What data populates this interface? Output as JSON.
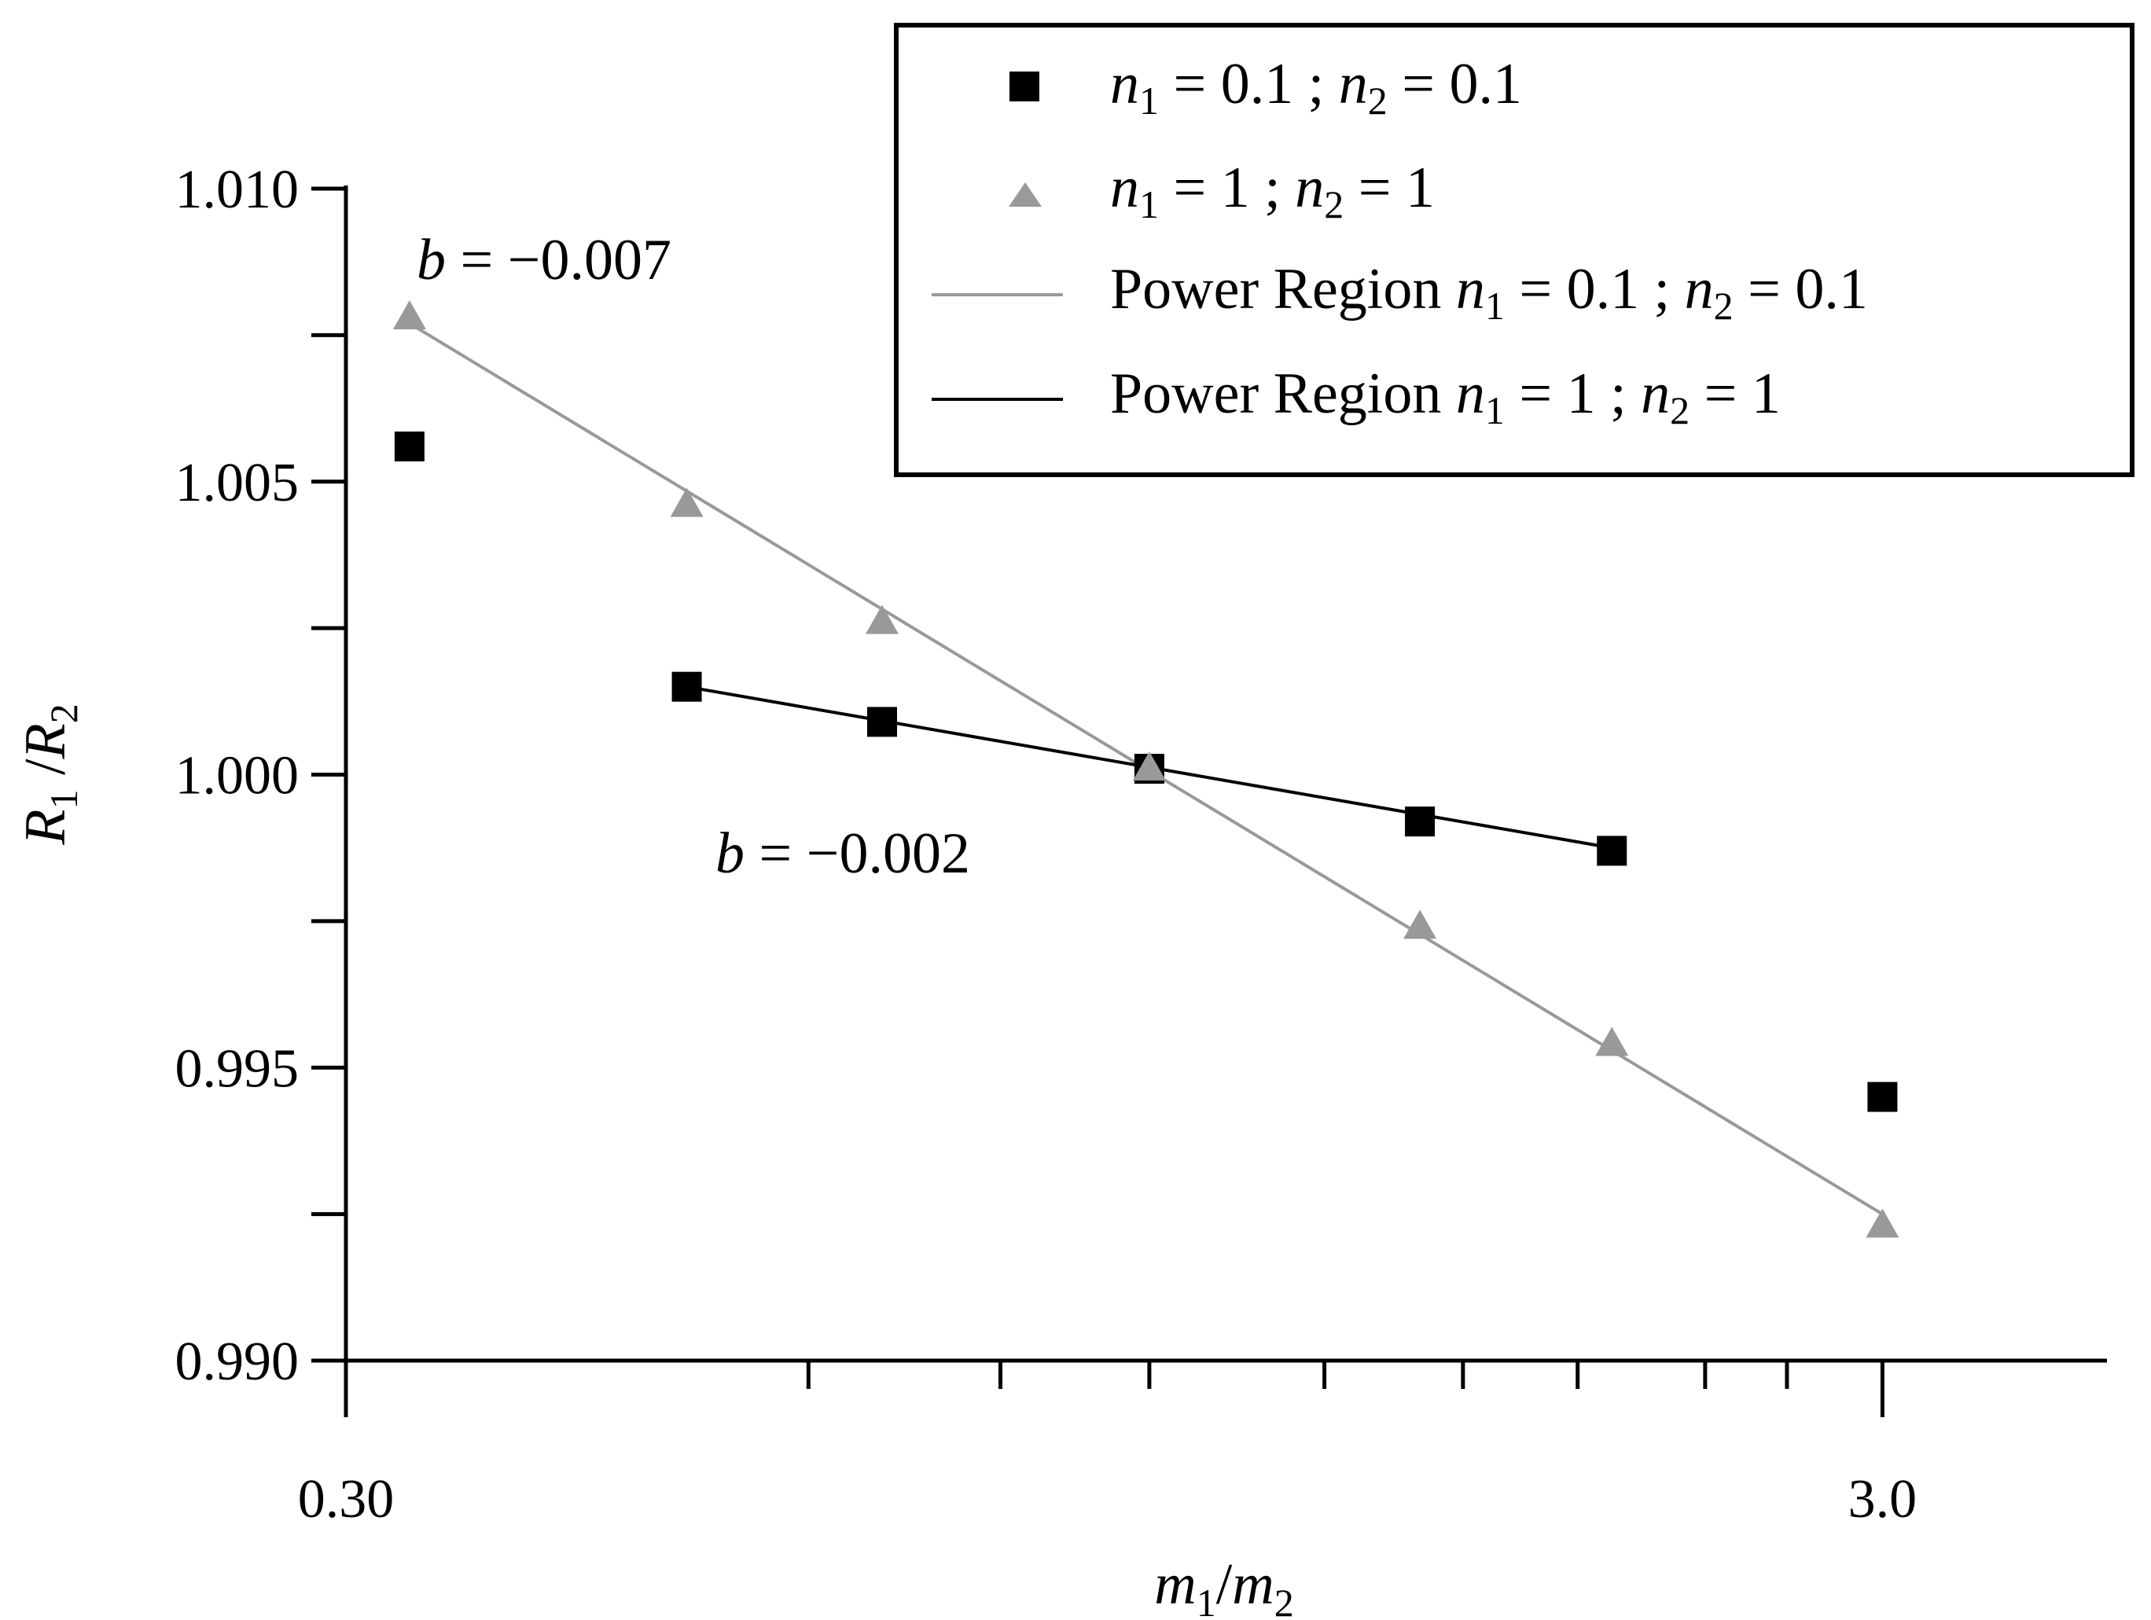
{
  "chart_data": {
    "type": "scatter",
    "title": "",
    "xlabel": "m1/m2",
    "ylabel": "R1 /R2",
    "xscale": "log",
    "xlim": [
      0.3,
      4.2
    ],
    "ylim": [
      0.99,
      1.01
    ],
    "x_tick_labels": [
      "0.30",
      "3.0"
    ],
    "y_tick_labels": [
      "0.990",
      "0.995",
      "1.000",
      "1.005",
      "1.010"
    ],
    "y_ticks": [
      0.99,
      0.995,
      1.0,
      1.005,
      1.01
    ],
    "y_minor_ticks": [
      0.9925,
      0.9975,
      1.0025,
      1.0075
    ],
    "x_ticks": [
      0.3,
      0.6,
      0.8,
      1.0,
      1.3,
      1.6,
      1.9,
      2.3,
      2.6,
      3.0
    ],
    "legend_position": "top-right",
    "series": [
      {
        "name": "n1 = 0.1 ; n2 = 0.1",
        "kind": "points",
        "marker": "square",
        "color": "#000000",
        "x": [
          0.33,
          0.5,
          0.67,
          1.0,
          1.5,
          2.0,
          3.0
        ],
        "y": [
          1.0056,
          1.0015,
          1.0009,
          1.0001,
          0.9992,
          0.9987,
          0.9945
        ]
      },
      {
        "name": "n1 = 1 ; n2 = 1",
        "kind": "points",
        "marker": "triangle",
        "color": "#999999",
        "x": [
          0.33,
          0.5,
          0.67,
          1.0,
          1.5,
          2.0,
          3.0
        ],
        "y": [
          1.0078,
          1.0046,
          1.0026,
          1.0001,
          0.9974,
          0.9954,
          0.9923
        ]
      },
      {
        "name": "Power Region n1 = 0.1 ; n2 = 0.1",
        "kind": "line",
        "color": "#999999",
        "x": [
          0.33,
          3.0
        ],
        "y": [
          1.0077,
          0.9925
        ]
      },
      {
        "name": "Power Region n1 = 1 ; n2 = 1",
        "kind": "line",
        "color": "#000000",
        "x": [
          0.5,
          2.0
        ],
        "y": [
          1.0015,
          0.99875
        ]
      }
    ],
    "annotations": [
      {
        "text": "b = −0.007",
        "x": 0.33,
        "y": 1.0085
      },
      {
        "text": "b = −0.002",
        "x": 0.5,
        "y": 0.9986
      }
    ]
  },
  "legend": {
    "items": [
      {
        "label": "n1 = 0.1 ; n2 = 0.1"
      },
      {
        "label": "n1 = 1 ; n2 = 1"
      },
      {
        "label": "Power Region n1 = 0.1 ; n2 = 0.1"
      },
      {
        "label": "Power Region n1 = 1 ; n2 = 1"
      }
    ]
  },
  "colors": {
    "black_series": "#000000",
    "gray_series": "#999999",
    "axis": "#000000"
  }
}
